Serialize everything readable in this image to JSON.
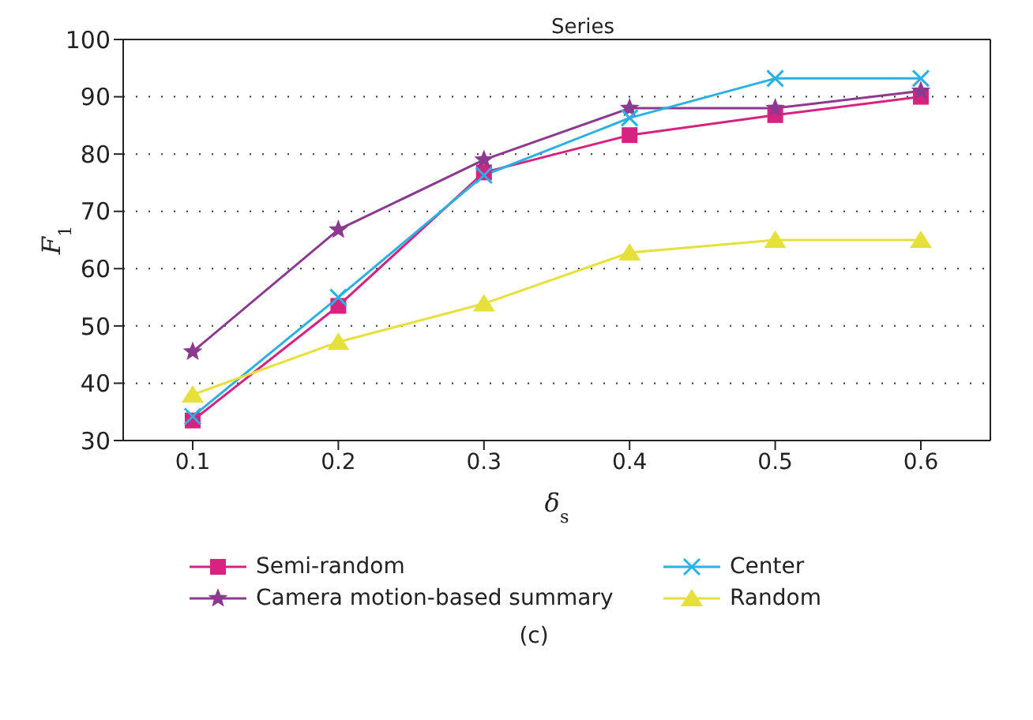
{
  "chart_data": {
    "type": "line",
    "title": "Series",
    "xlabel": "δ$_{s}$",
    "ylabel": "F$_{1}$",
    "annotations": [
      "(c)"
    ],
    "categories": [
      "0.1",
      "0.2",
      "0.3",
      "0.4",
      "0.5",
      "0.6"
    ],
    "series": [
      {
        "name": "Semi-random",
        "color": "#d6237f",
        "marker": "square",
        "values": [
          33.5,
          53.5,
          76.8,
          83.3,
          86.8,
          90
        ]
      },
      {
        "name": "Camera motion-based summary",
        "color": "#8b3a8f",
        "marker": "star",
        "values": [
          45.5,
          66.8,
          79,
          88,
          88,
          91
        ]
      },
      {
        "name": "Center",
        "color": "#29b1e5",
        "marker": "cross",
        "values": [
          34.2,
          55,
          76.3,
          86.3,
          93.2,
          93.2
        ]
      },
      {
        "name": "Random",
        "color": "#e6e03a",
        "marker": "triangle",
        "values": [
          38,
          47.2,
          53.9,
          62.8,
          65,
          65
        ]
      }
    ],
    "ylim": [
      30,
      100
    ],
    "yticks": [
      30,
      40,
      50,
      60,
      70,
      80,
      90,
      100
    ],
    "grid": "y",
    "legend": "bottom",
    "line_style": "solid"
  }
}
